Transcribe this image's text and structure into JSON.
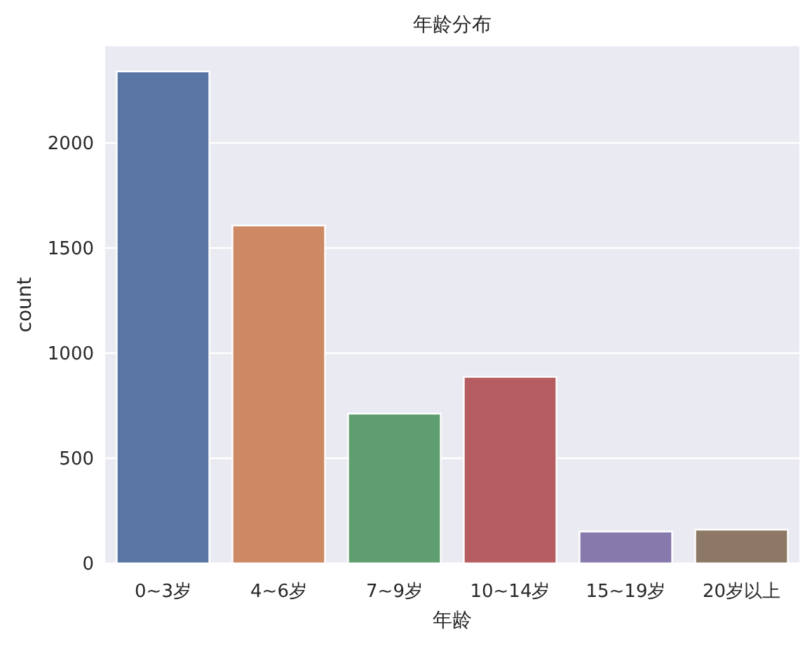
{
  "chart_data": {
    "type": "bar",
    "title": "年龄分布",
    "xlabel": "年龄",
    "ylabel": "count",
    "categories": [
      "0~3岁",
      "4~6岁",
      "7~9岁",
      "10~14岁",
      "15~19岁",
      "20岁以上"
    ],
    "values": [
      2340,
      1607,
      712,
      887,
      151,
      160
    ],
    "colors": [
      "#5875a4",
      "#cc8963",
      "#5f9e6e",
      "#b55d60",
      "#857aab",
      "#8d7866"
    ],
    "ylim": [
      0,
      2460
    ],
    "yticks": [
      0,
      500,
      1000,
      1500,
      2000
    ],
    "grid": "y"
  }
}
